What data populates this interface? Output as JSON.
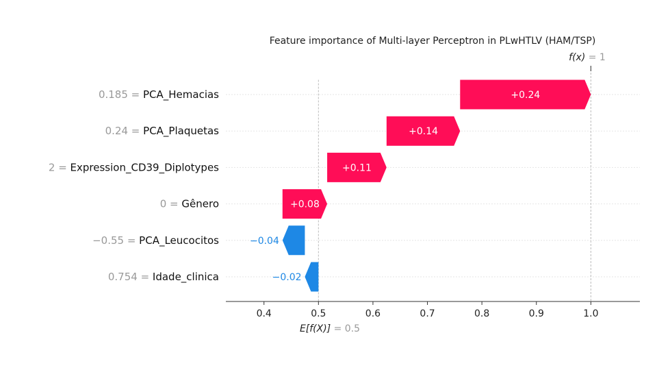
{
  "chart_data": {
    "type": "waterfall",
    "title": "Feature importance of Multi-layer Perceptron in PLwHTLV (HAM/TSP)",
    "fx_label": {
      "name": "f(x)",
      "eq": " = ",
      "value": "1"
    },
    "ex_label": {
      "name": "E[f(X)]",
      "eq": " = ",
      "value": "0.5"
    },
    "base_value": 0.5,
    "output_value": 1.0,
    "xlim": [
      0.33,
      1.09
    ],
    "x_ticks": [
      0.4,
      0.5,
      0.6,
      0.7,
      0.8,
      0.9,
      1.0
    ],
    "x_tick_labels": [
      "0.4",
      "0.5",
      "0.6",
      "0.7",
      "0.8",
      "0.9",
      "1.0"
    ],
    "features": [
      {
        "value_text": "0.185",
        "name": "PCA_Hemacias",
        "start": 0.76,
        "end": 1.0,
        "label": "+0.24"
      },
      {
        "value_text": "0.24",
        "name": "PCA_Plaquetas",
        "start": 0.625,
        "end": 0.76,
        "label": "+0.14"
      },
      {
        "value_text": "2",
        "name": "Expression_CD39_Diplotypes",
        "start": 0.516,
        "end": 0.625,
        "label": "+0.11"
      },
      {
        "value_text": "0",
        "name": "Gênero",
        "start": 0.434,
        "end": 0.516,
        "label": "+0.08"
      },
      {
        "value_text": "−0.55",
        "name": "PCA_Leucocitos",
        "start": 0.475,
        "end": 0.434,
        "label": "−0.04"
      },
      {
        "value_text": "0.754",
        "name": "Idade_clinica",
        "start": 0.5,
        "end": 0.475,
        "label": "−0.02"
      }
    ],
    "colors": {
      "positive": "#ff0d57",
      "negative": "#1e88e5",
      "label_gray": "#999999",
      "axis": "#333333",
      "grid": "#e6e6e6"
    },
    "grid": true
  }
}
